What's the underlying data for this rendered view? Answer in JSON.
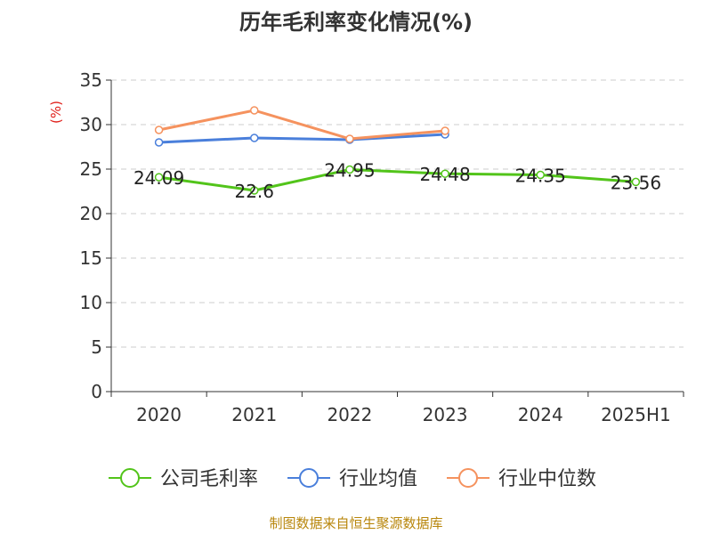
{
  "chart_data": {
    "type": "line",
    "title": "历年毛利率变化情况(%)",
    "ylabel": "(%)",
    "xlabel": "",
    "categories": [
      "2020",
      "2021",
      "2022",
      "2023",
      "2024",
      "2025H1"
    ],
    "ylim": [
      0,
      35
    ],
    "yticks": [
      0,
      5,
      10,
      15,
      20,
      25,
      30,
      35
    ],
    "grid": true,
    "legend_position": "bottom",
    "series": [
      {
        "name": "公司毛利率",
        "color": "#52c41a",
        "values": [
          24.09,
          22.6,
          24.95,
          24.48,
          24.35,
          23.56
        ],
        "labels": [
          "24.09",
          "22.6",
          "24.95",
          "24.48",
          "24.35",
          "23.56"
        ]
      },
      {
        "name": "行业均值",
        "color": "#4a7fdb",
        "values": [
          28.0,
          28.5,
          28.3,
          28.9,
          null,
          null
        ]
      },
      {
        "name": "行业中位数",
        "color": "#f5925e",
        "values": [
          29.4,
          31.6,
          28.4,
          29.3,
          null,
          null
        ]
      }
    ]
  },
  "source_note": "制图数据来自恒生聚源数据库"
}
